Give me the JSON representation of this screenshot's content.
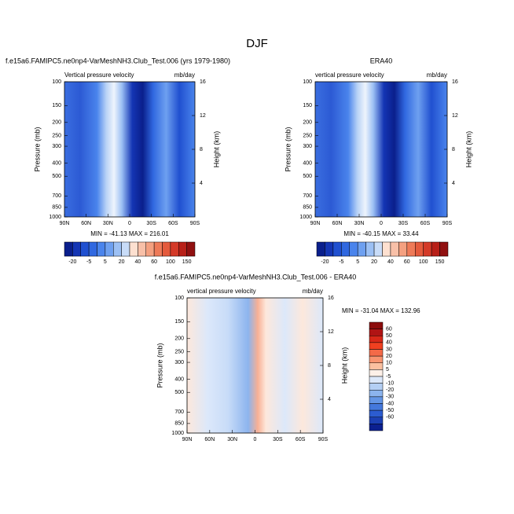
{
  "title": "DJF",
  "chart_data": [
    {
      "type": "contour",
      "title": "f.e15a6.FAMIPC5.ne0np4-VarMeshNH3.Club_Test.006 (yrs 1979-1980)",
      "subtitle": "Vertical pressure velocity",
      "units": "mb/day",
      "ylabel": "Pressure (mb)",
      "y2label": "Height (km)",
      "stats": "MIN = -41.13   MAX = 216.01",
      "xlim": [
        90,
        -90
      ],
      "xticks": [
        {
          "value": 90,
          "label": "90N"
        },
        {
          "value": 60,
          "label": "60N"
        },
        {
          "value": 30,
          "label": "30N"
        },
        0,
        {
          "value": -30,
          "label": "30S"
        },
        {
          "value": -60,
          "label": "60S"
        },
        {
          "value": -90,
          "label": "90S"
        }
      ],
      "ylim": [
        100,
        1000
      ],
      "yticks": [
        100,
        150,
        200,
        250,
        300,
        400,
        500,
        700,
        850,
        1000
      ],
      "log_y": true,
      "y2lim": [
        0,
        16
      ],
      "y2ticks": [
        4,
        8,
        12,
        16
      ],
      "colorbar": {
        "levels": [
          -20,
          -5,
          5,
          20,
          40,
          60,
          100,
          150
        ],
        "colors": [
          "#0a1f8c",
          "#1435b4",
          "#2050d0",
          "#3068e0",
          "#4a84ec",
          "#6ea0f0",
          "#9cc0f4",
          "#c8dcf8",
          "#fde0d0",
          "#f8c0a8",
          "#f4a080",
          "#ee7a58",
          "#e45a3c",
          "#d43a28",
          "#b82018",
          "#901010"
        ]
      }
    },
    {
      "type": "contour",
      "title": "ERA40",
      "subtitle": "vertical pressure velocity",
      "units": "mb/day",
      "ylabel": "Pressure (mb)",
      "y2label": "Height (km)",
      "stats": "MIN = -40.15   MAX =  33.44",
      "xlim": [
        90,
        -90
      ],
      "xticks": [
        {
          "value": 90,
          "label": "90N"
        },
        {
          "value": 60,
          "label": "60N"
        },
        {
          "value": 30,
          "label": "30N"
        },
        0,
        {
          "value": -30,
          "label": "30S"
        },
        {
          "value": -60,
          "label": "60S"
        },
        {
          "value": -90,
          "label": "90S"
        }
      ],
      "ylim": [
        100,
        1000
      ],
      "yticks": [
        100,
        150,
        200,
        250,
        300,
        400,
        500,
        700,
        850,
        1000
      ],
      "log_y": true,
      "y2lim": [
        0,
        16
      ],
      "y2ticks": [
        4,
        8,
        12,
        16
      ],
      "colorbar": {
        "levels": [
          -20,
          -5,
          5,
          20,
          40,
          60,
          100,
          150
        ],
        "colors": [
          "#0a1f8c",
          "#1435b4",
          "#2050d0",
          "#3068e0",
          "#4a84ec",
          "#6ea0f0",
          "#9cc0f4",
          "#c8dcf8",
          "#fde0d0",
          "#f8c0a8",
          "#f4a080",
          "#ee7a58",
          "#e45a3c",
          "#d43a28",
          "#b82018",
          "#901010"
        ]
      }
    },
    {
      "type": "contour",
      "title": "f.e15a6.FAMIPC5.ne0np4-VarMeshNH3.Club_Test.006 - ERA40",
      "subtitle": "vertical pressure velocity",
      "units": "mb/day",
      "ylabel": "Pressure (mb)",
      "y2label": "Height (km)",
      "stats": "MIN = -31.04   MAX = 132.96",
      "xlim": [
        90,
        -90
      ],
      "xticks": [
        {
          "value": 90,
          "label": "90N"
        },
        {
          "value": 60,
          "label": "60N"
        },
        {
          "value": 30,
          "label": "30N"
        },
        0,
        {
          "value": -30,
          "label": "30S"
        },
        {
          "value": -60,
          "label": "60S"
        },
        {
          "value": -90,
          "label": "90S"
        }
      ],
      "ylim": [
        100,
        1000
      ],
      "yticks": [
        100,
        150,
        200,
        250,
        300,
        400,
        500,
        700,
        850,
        1000
      ],
      "log_y": true,
      "y2lim": [
        0,
        16
      ],
      "y2ticks": [
        4,
        8,
        12,
        16
      ],
      "colorbar": {
        "levels": [
          60,
          50,
          40,
          30,
          20,
          10,
          5,
          -5,
          -10,
          -20,
          -30,
          -40,
          -50,
          -60
        ],
        "colors": [
          "#8c0c0c",
          "#b01414",
          "#d82818",
          "#f04020",
          "#f46a48",
          "#f89470",
          "#fbc0a0",
          "#fdf0e8",
          "#dce8fa",
          "#b4cff4",
          "#8cb4ee",
          "#6496e6",
          "#4478dc",
          "#2c5cd0",
          "#1c40b4",
          "#0c2090"
        ]
      }
    }
  ]
}
